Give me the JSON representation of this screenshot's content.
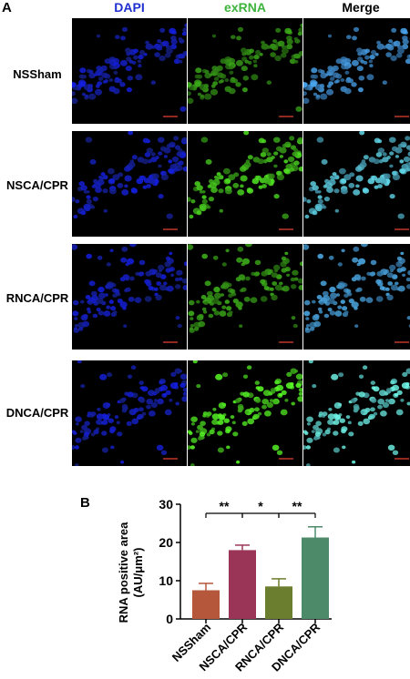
{
  "panel_a": {
    "letter": "A",
    "columns": [
      {
        "label": "DAPI",
        "color": "#1f2fd0"
      },
      {
        "label": "exRNA",
        "color": "#3db33d"
      },
      {
        "label": "Merge",
        "color": "#000000"
      }
    ],
    "rows": [
      {
        "label": "NSSham"
      },
      {
        "label": "NSCA/CPR"
      },
      {
        "label": "RNCA/CPR"
      },
      {
        "label": "DNCA/CPR"
      }
    ]
  },
  "panel_b": {
    "letter": "B"
  },
  "chart_data": {
    "type": "bar",
    "title": "",
    "xlabel": "",
    "ylabel": "RNA positive area",
    "ylabel_line2": "(AU/μm²)",
    "categories": [
      "NSSham",
      "NSCA/CPR",
      "RNCA/CPR",
      "DNCA/CPR"
    ],
    "values": [
      7.5,
      18.0,
      8.5,
      21.3
    ],
    "errors": [
      1.8,
      1.3,
      2.0,
      2.8
    ],
    "colors": [
      "#b5573a",
      "#9a3558",
      "#6b7d2e",
      "#4d8a6a"
    ],
    "ylim": [
      0,
      30
    ],
    "yticks": [
      "0",
      "10",
      "20",
      "30"
    ],
    "significance": [
      {
        "from": 0,
        "to": 1,
        "label": "**"
      },
      {
        "from": 1,
        "to": 2,
        "label": "*"
      },
      {
        "from": 2,
        "to": 3,
        "label": "**"
      }
    ]
  }
}
